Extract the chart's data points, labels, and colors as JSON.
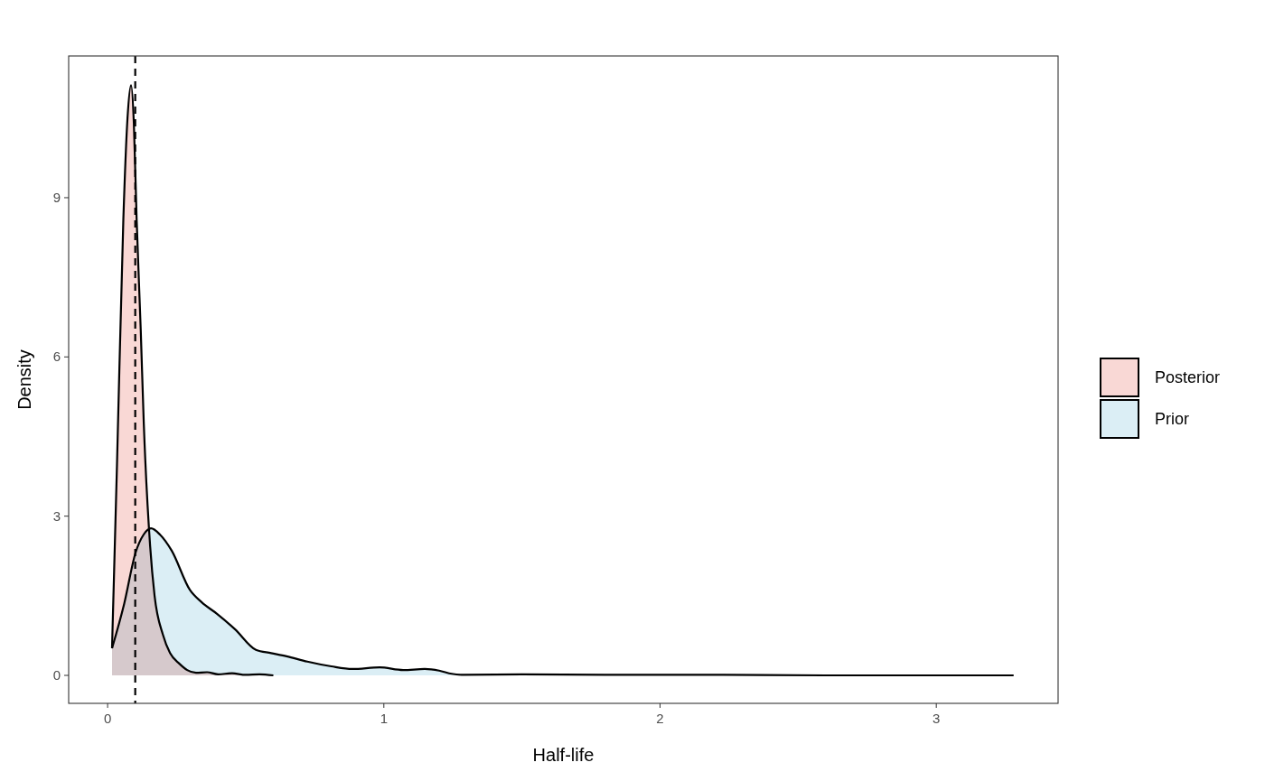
{
  "chart_data": {
    "type": "area",
    "xlabel": "Half-life",
    "ylabel": "Density",
    "xlim": [
      -0.141,
      3.441
    ],
    "ylim": [
      -0.527,
      11.67
    ],
    "xticks": [
      0,
      1,
      2,
      3
    ],
    "yticks": [
      0,
      3,
      6,
      9
    ],
    "grid": false,
    "legend": "right",
    "ref_lines": [
      {
        "axis": "x",
        "value": 0.1,
        "label": null,
        "color": "#000000",
        "line_style": "dashed"
      }
    ],
    "series": [
      {
        "name": "Posterior",
        "color": "#f9d8d5",
        "x": [
          0.016,
          0.034,
          0.057,
          0.072,
          0.085,
          0.095,
          0.105,
          0.12,
          0.131,
          0.154,
          0.17,
          0.2,
          0.226,
          0.26,
          0.288,
          0.32,
          0.36,
          0.4,
          0.45,
          0.5,
          0.55,
          0.6
        ],
        "values": [
          0.51,
          3.98,
          8.6,
          10.5,
          11.12,
          10.4,
          8.6,
          6.5,
          4.74,
          2.43,
          1.5,
          0.77,
          0.42,
          0.22,
          0.1,
          0.05,
          0.06,
          0.02,
          0.04,
          0.01,
          0.02,
          0
        ]
      },
      {
        "name": "Prior",
        "color": "#dbeef5",
        "x": [
          0.016,
          0.06,
          0.101,
          0.13,
          0.157,
          0.19,
          0.232,
          0.298,
          0.34,
          0.396,
          0.461,
          0.537,
          0.592,
          0.648,
          0.723,
          0.81,
          0.886,
          0.985,
          1.07,
          1.148,
          1.2,
          1.246,
          1.29,
          1.5,
          1.8,
          2.2,
          2.6,
          3.0,
          3.28
        ],
        "values": [
          0.51,
          1.35,
          2.31,
          2.65,
          2.77,
          2.65,
          2.35,
          1.61,
          1.38,
          1.16,
          0.87,
          0.48,
          0.42,
          0.36,
          0.26,
          0.17,
          0.12,
          0.15,
          0.1,
          0.12,
          0.09,
          0.03,
          0.01,
          0.02,
          0.01,
          0.01,
          0,
          0,
          0
        ]
      }
    ]
  }
}
